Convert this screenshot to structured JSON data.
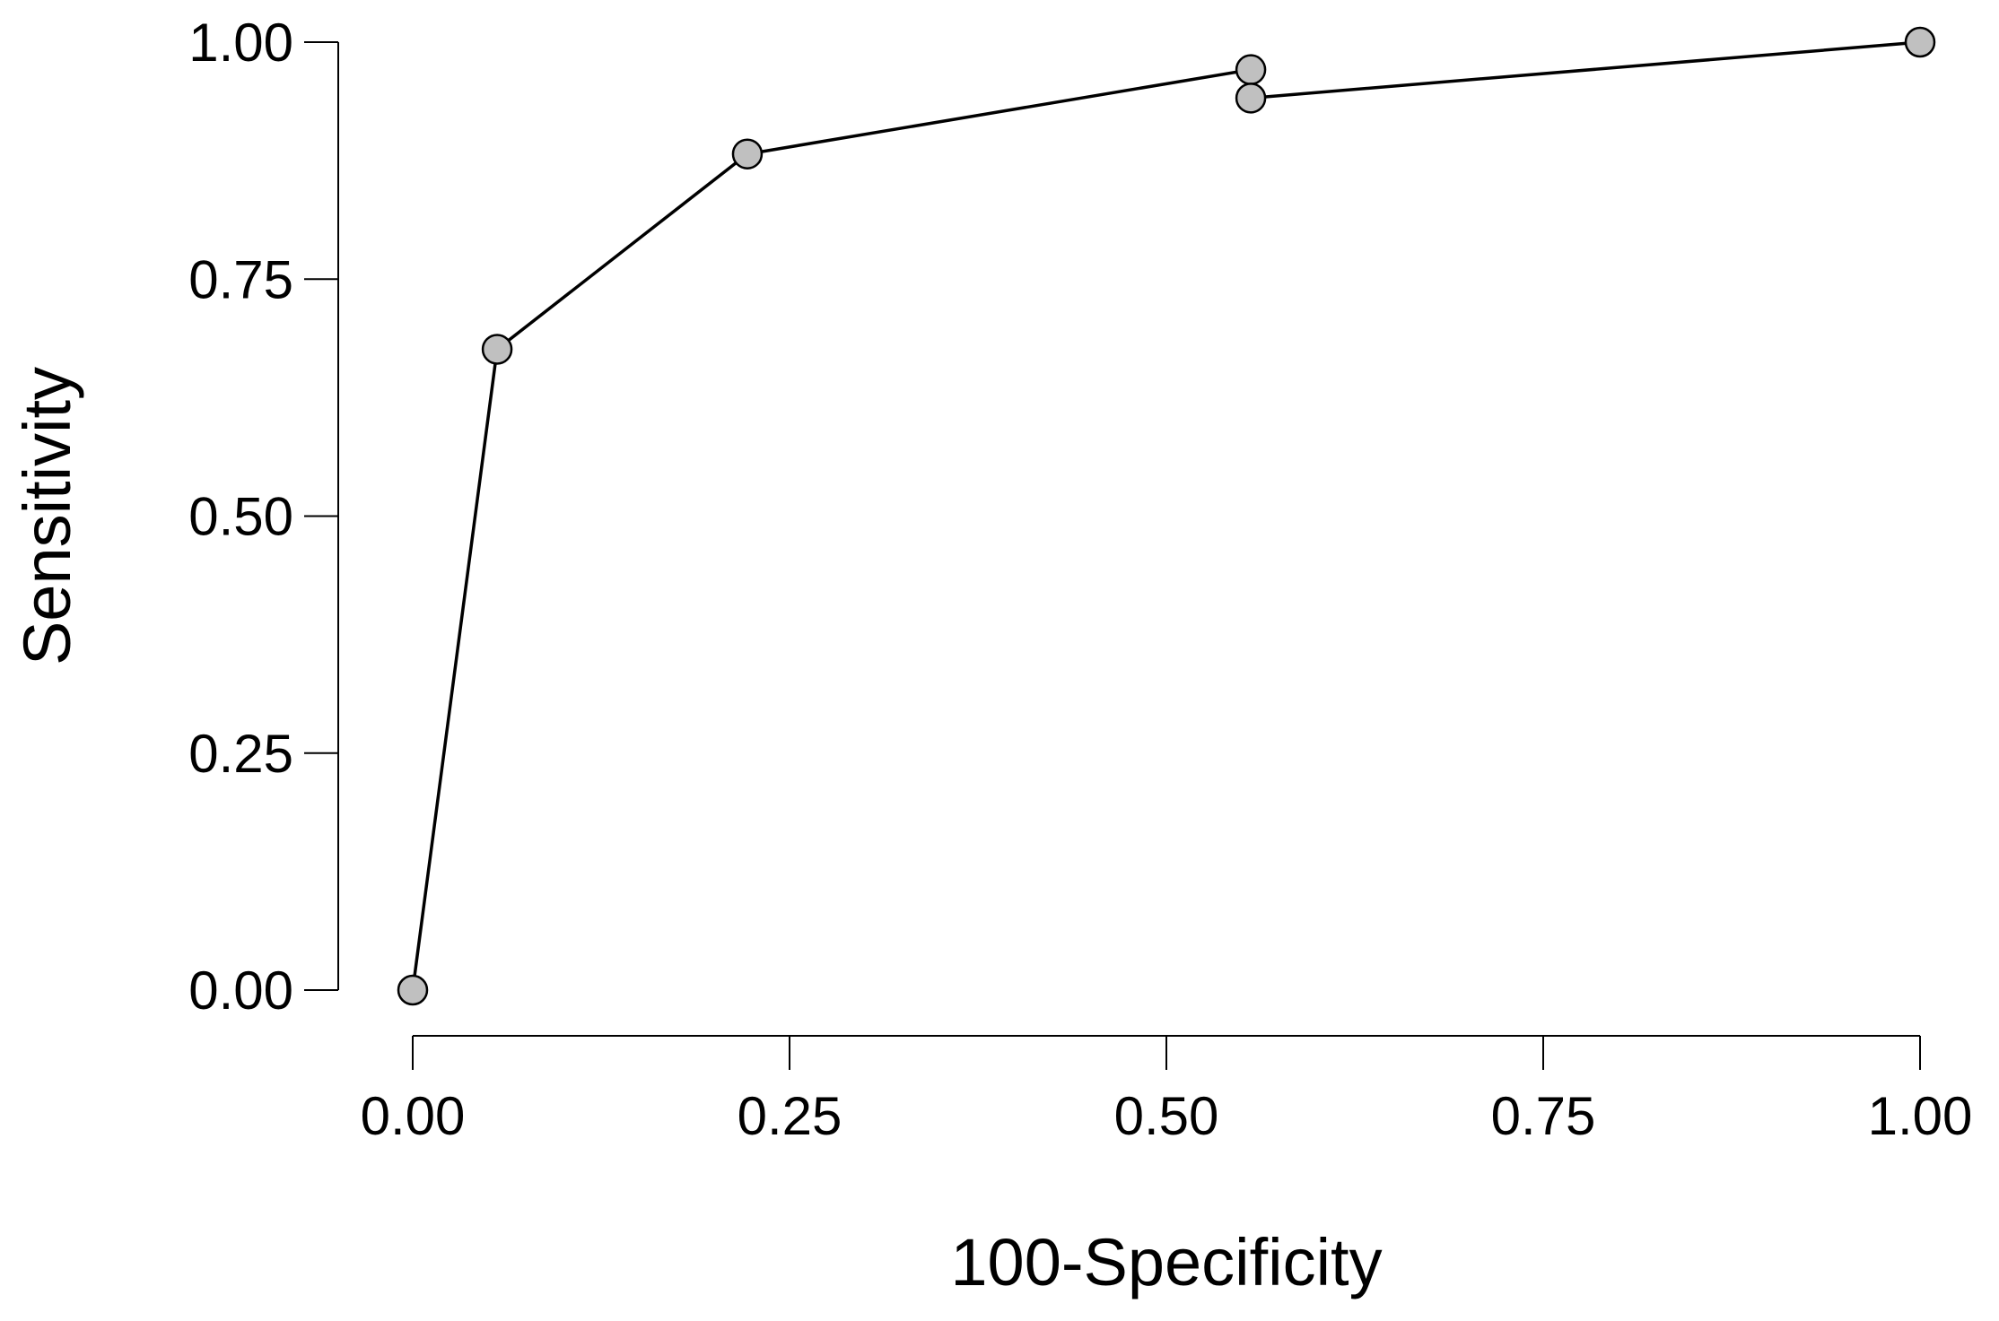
{
  "chart_data": {
    "type": "line",
    "title": "",
    "xlabel": "100-Specificity",
    "ylabel": "Sensitivity",
    "xlim": [
      0,
      1
    ],
    "ylim": [
      0,
      1
    ],
    "x_ticks": [
      "0.00",
      "0.25",
      "0.50",
      "0.75",
      "1.00"
    ],
    "y_ticks": [
      "0.00",
      "0.25",
      "0.50",
      "0.75",
      "1.00"
    ],
    "grid": false,
    "legend": "none",
    "marker_fill": "#c0c0c0",
    "line_color": "#000000",
    "series": [
      {
        "x": [
          0.0,
          0.056,
          0.222,
          0.556,
          0.556,
          1.0
        ],
        "y": [
          0.0,
          0.676,
          0.882,
          0.971,
          0.941,
          1.0
        ]
      }
    ]
  }
}
